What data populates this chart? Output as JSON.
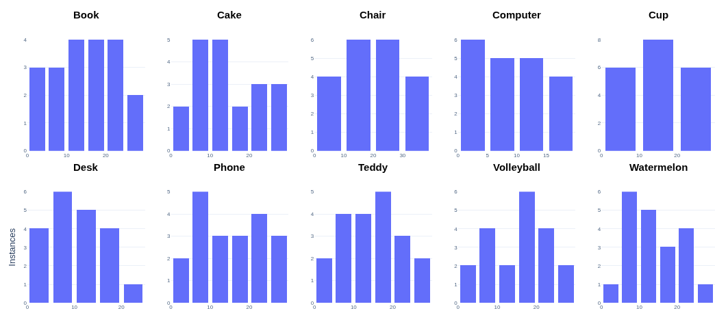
{
  "chart_data": [
    {
      "type": "histogram",
      "title": "Book",
      "bins": [
        0,
        5,
        10,
        15,
        20,
        25,
        30
      ],
      "values": [
        3,
        3,
        4,
        4,
        4,
        2
      ],
      "color": "#636efa",
      "xlim": [
        0,
        30
      ],
      "xticks": [
        0,
        10,
        20
      ],
      "ylim": [
        0,
        4
      ],
      "yticks": [
        0,
        1,
        2,
        3,
        4
      ],
      "grid": "y"
    },
    {
      "type": "histogram",
      "title": "Cake",
      "bins": [
        0,
        5,
        10,
        15,
        20,
        25,
        30
      ],
      "values": [
        2,
        5,
        5,
        2,
        3,
        3
      ],
      "color": "#636efa",
      "xlim": [
        0,
        30
      ],
      "xticks": [
        0,
        10,
        20
      ],
      "ylim": [
        0,
        5
      ],
      "yticks": [
        0,
        1,
        2,
        3,
        4,
        5
      ],
      "grid": "y"
    },
    {
      "type": "histogram",
      "title": "Chair",
      "bins": [
        0,
        10,
        20,
        30,
        40
      ],
      "values": [
        4,
        6,
        6,
        4
      ],
      "color": "#636efa",
      "xlim": [
        0,
        40
      ],
      "xticks": [
        0,
        10,
        20,
        30
      ],
      "ylim": [
        0,
        6
      ],
      "yticks": [
        0,
        1,
        2,
        3,
        4,
        5,
        6
      ],
      "grid": "y"
    },
    {
      "type": "histogram",
      "title": "Computer",
      "bins": [
        0,
        5,
        10,
        15,
        20
      ],
      "values": [
        6,
        5,
        5,
        4
      ],
      "color": "#636efa",
      "xlim": [
        0,
        20
      ],
      "xticks": [
        0,
        5,
        10,
        15
      ],
      "ylim": [
        0,
        6
      ],
      "yticks": [
        0,
        1,
        2,
        3,
        4,
        5,
        6
      ],
      "grid": "y"
    },
    {
      "type": "histogram",
      "title": "Cup",
      "bins": [
        0,
        10,
        20,
        30
      ],
      "values": [
        6,
        8,
        6
      ],
      "color": "#636efa",
      "xlim": [
        0,
        30
      ],
      "xticks": [
        0,
        10,
        20
      ],
      "ylim": [
        0,
        8
      ],
      "yticks": [
        0,
        2,
        4,
        6,
        8
      ],
      "grid": "y"
    },
    {
      "type": "histogram",
      "title": "Desk",
      "ylabel": "Instances",
      "bins": [
        0,
        5,
        10,
        15,
        20,
        25
      ],
      "values": [
        4,
        6,
        5,
        4,
        1
      ],
      "color": "#636efa",
      "xlim": [
        0,
        25
      ],
      "xticks": [
        0,
        10,
        20
      ],
      "ylim": [
        0,
        6
      ],
      "yticks": [
        0,
        1,
        2,
        3,
        4,
        5,
        6
      ],
      "grid": "y"
    },
    {
      "type": "histogram",
      "title": "Phone",
      "bins": [
        0,
        5,
        10,
        15,
        20,
        25,
        30
      ],
      "values": [
        2,
        5,
        3,
        3,
        4,
        3
      ],
      "color": "#636efa",
      "xlim": [
        0,
        30
      ],
      "xticks": [
        0,
        10,
        20
      ],
      "ylim": [
        0,
        5
      ],
      "yticks": [
        0,
        1,
        2,
        3,
        4,
        5
      ],
      "grid": "y"
    },
    {
      "type": "histogram",
      "title": "Teddy",
      "bins": [
        0,
        5,
        10,
        15,
        20,
        25,
        30
      ],
      "values": [
        2,
        4,
        4,
        5,
        3,
        2
      ],
      "color": "#636efa",
      "xlim": [
        0,
        30
      ],
      "xticks": [
        0,
        10,
        20
      ],
      "ylim": [
        0,
        5
      ],
      "yticks": [
        0,
        1,
        2,
        3,
        4,
        5
      ],
      "grid": "y"
    },
    {
      "type": "histogram",
      "title": "Volleyball",
      "bins": [
        0,
        5,
        10,
        15,
        20,
        25,
        30
      ],
      "values": [
        2,
        4,
        2,
        6,
        4,
        2
      ],
      "color": "#636efa",
      "xlim": [
        0,
        30
      ],
      "xticks": [
        0,
        10,
        20
      ],
      "ylim": [
        0,
        6
      ],
      "yticks": [
        0,
        1,
        2,
        3,
        4,
        5,
        6
      ],
      "grid": "y"
    },
    {
      "type": "histogram",
      "title": "Watermelon",
      "bins": [
        0,
        5,
        10,
        15,
        20,
        25,
        30
      ],
      "values": [
        1,
        6,
        5,
        3,
        4,
        1
      ],
      "color": "#636efa",
      "xlim": [
        0,
        30
      ],
      "xticks": [
        0,
        10,
        20
      ],
      "ylim": [
        0,
        6
      ],
      "yticks": [
        0,
        1,
        2,
        3,
        4,
        5,
        6
      ],
      "grid": "y"
    }
  ]
}
